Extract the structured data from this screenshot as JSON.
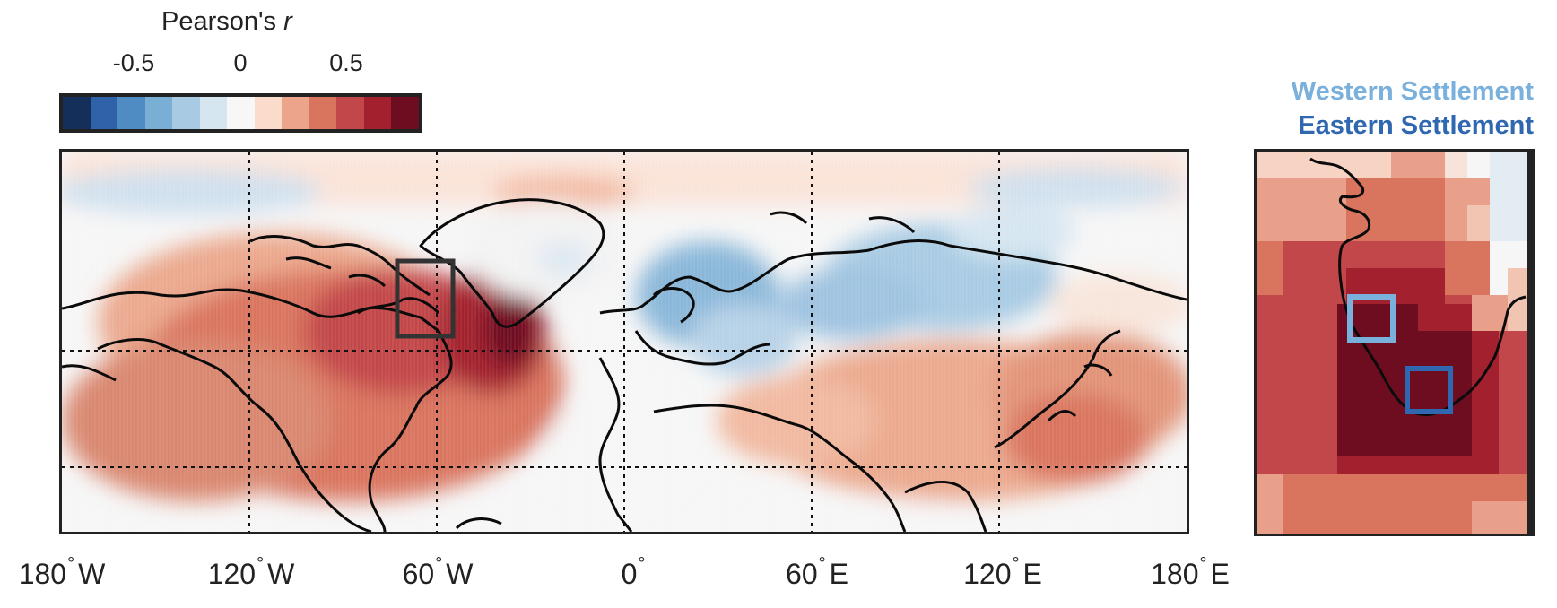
{
  "colorbar": {
    "title_prefix": "Pearson's ",
    "title_var": "r",
    "ticks": [
      {
        "label": "-0.5",
        "value": -0.5
      },
      {
        "label": "0",
        "value": 0
      },
      {
        "label": "0.5",
        "value": 0.5
      }
    ],
    "range": [
      -0.9,
      0.9
    ],
    "colors": [
      "#14305a",
      "#2f62a8",
      "#4f8cc4",
      "#79aed5",
      "#a8cbe3",
      "#d6e6f1",
      "#f7f7f7",
      "#fbdccc",
      "#eca58a",
      "#d9745f",
      "#c2474a",
      "#a3202f",
      "#6e0d20"
    ]
  },
  "map": {
    "x_ticks": [
      {
        "deg": "180",
        "dir": "W",
        "lon": -180
      },
      {
        "deg": "120",
        "dir": "W",
        "lon": -120
      },
      {
        "deg": "60",
        "dir": "W",
        "lon": -60
      },
      {
        "deg": "0",
        "dir": "",
        "lon": 0
      },
      {
        "deg": "60",
        "dir": "E",
        "lon": 60
      },
      {
        "deg": "120",
        "dir": "E",
        "lon": 120
      },
      {
        "deg": "180",
        "dir": "E",
        "lon": 180
      }
    ],
    "lon_range": [
      -180,
      180
    ],
    "grid": "dashed"
  },
  "legend": {
    "western": {
      "label": "Western Settlement",
      "color": "#7ab0dc"
    },
    "eastern": {
      "label": "Eastern Settlement",
      "color": "#2f67b0"
    }
  }
}
